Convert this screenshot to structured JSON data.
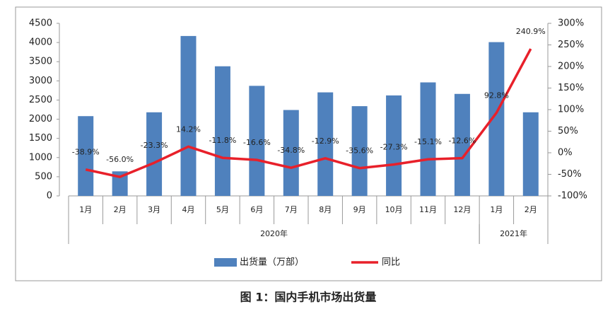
{
  "chart_data": {
    "type": "bar-line",
    "caption": "图 1：国内手机市场出货量",
    "categories": [
      "1月",
      "2月",
      "3月",
      "4月",
      "5月",
      "6月",
      "7月",
      "8月",
      "9月",
      "10月",
      "11月",
      "12月",
      "1月",
      "2月"
    ],
    "x_groups": [
      {
        "label": "2020年",
        "size": 12
      },
      {
        "label": "2021年",
        "size": 2
      }
    ],
    "series": [
      {
        "name": "出货量（万部）",
        "type": "bar",
        "color": "#4f81bd",
        "values": [
          2080,
          640,
          2180,
          4170,
          3380,
          2870,
          2240,
          2700,
          2340,
          2620,
          2960,
          2660,
          4010,
          2180
        ]
      },
      {
        "name": "同比",
        "type": "line",
        "axis": "y2",
        "color": "#e8202a",
        "values": [
          -38.9,
          -56.0,
          -23.3,
          14.2,
          -11.8,
          -16.6,
          -34.8,
          -12.9,
          -35.6,
          -27.3,
          -15.1,
          -12.6,
          92.8,
          240.9
        ],
        "value_labels": [
          "-38.9%",
          "-56.0%",
          "-23.3%",
          "14.2%",
          "-11.8%",
          "-16.6%",
          "-34.8%",
          "-12.9%",
          "-35.6%",
          "-27.3%",
          "-15.1%",
          "-12.6%",
          "92.8%",
          "240.9%"
        ]
      }
    ],
    "ylim": [
      0,
      4500
    ],
    "yticks": [
      0,
      500,
      1000,
      1500,
      2000,
      2500,
      3000,
      3500,
      4000,
      4500
    ],
    "y2lim": [
      -100,
      300
    ],
    "y2ticks": [
      {
        "value": -100,
        "label": "-100%"
      },
      {
        "value": -50,
        "label": "-50%"
      },
      {
        "value": 0,
        "label": "0%"
      },
      {
        "value": 50,
        "label": "50%"
      },
      {
        "value": 100,
        "label": "100%"
      },
      {
        "value": 150,
        "label": "150%"
      },
      {
        "value": 200,
        "label": "200%"
      },
      {
        "value": 250,
        "label": "250%"
      },
      {
        "value": 300,
        "label": "300%"
      }
    ]
  }
}
